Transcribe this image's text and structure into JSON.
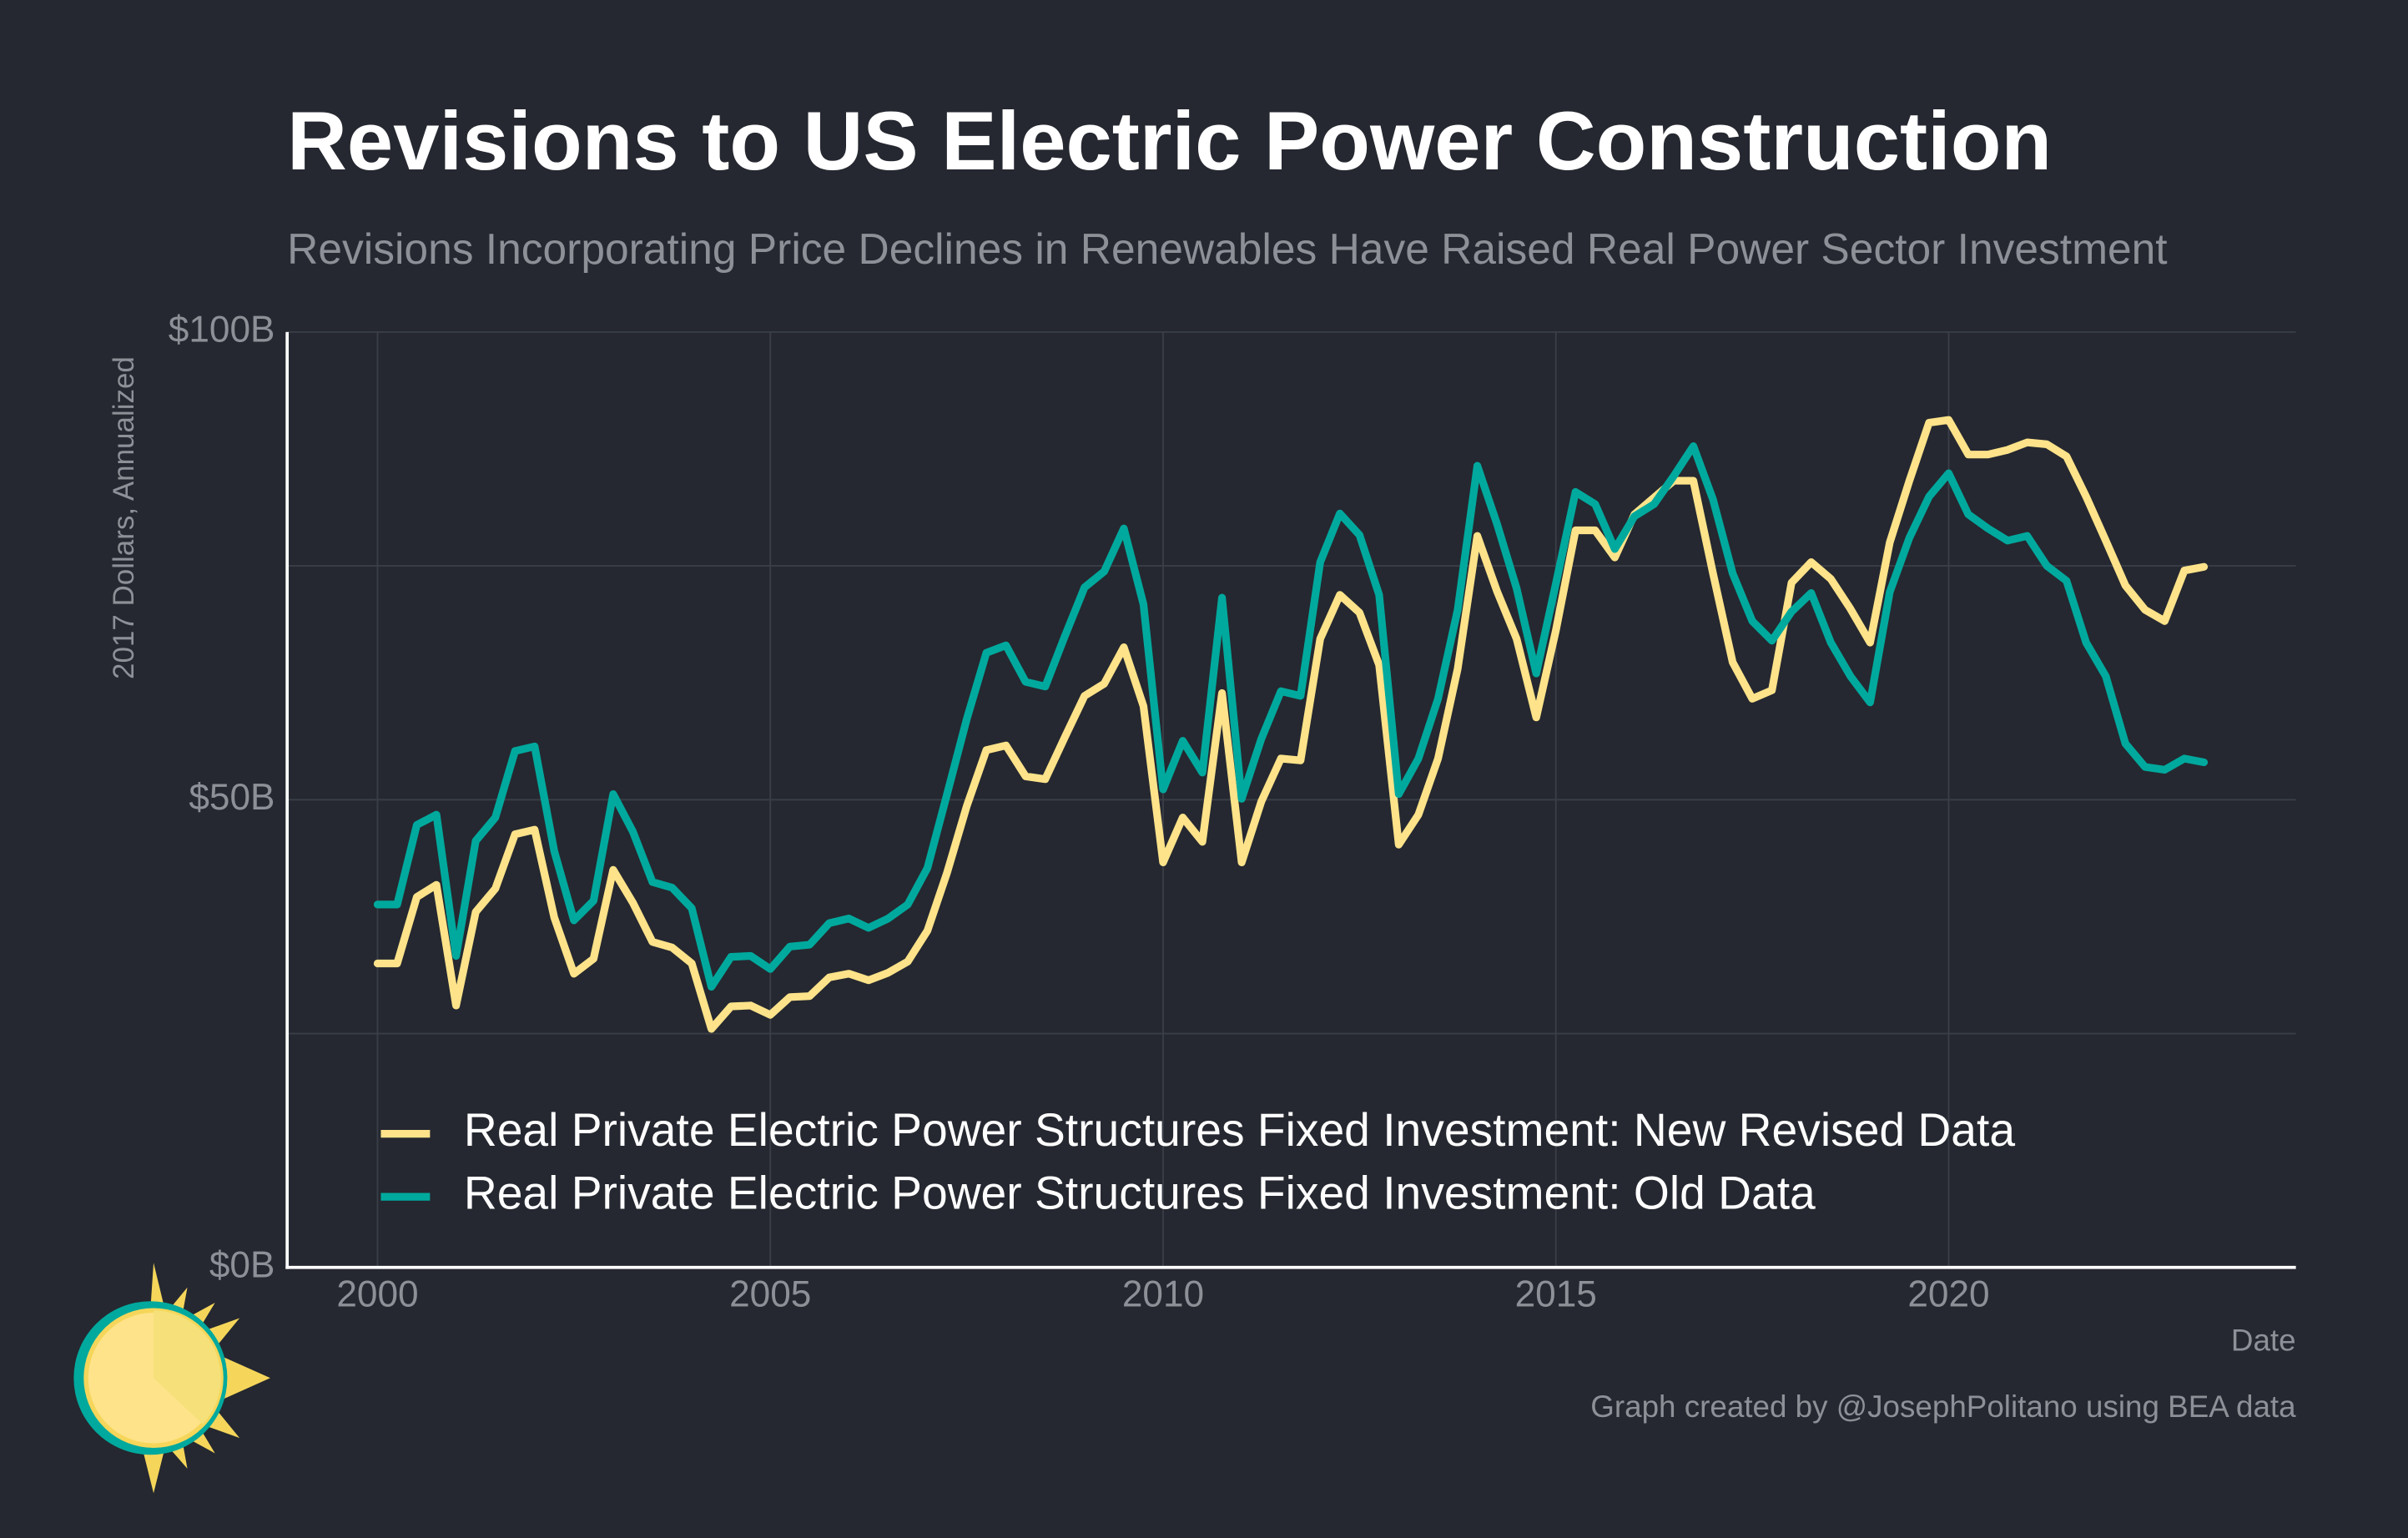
{
  "chart_data": {
    "type": "line",
    "title": "Revisions to US Electric Power Construction",
    "subtitle": "Revisions Incorporating Price Declines in Renewables Have Raised Real Power Sector Investment",
    "y_label": "2017 Dollars, Annualized",
    "x_label": "Date",
    "source": "Graph created by @JosephPolitano using BEA data",
    "x": [
      2000,
      2000.25,
      2000.5,
      2000.75,
      2001,
      2001.25,
      2001.5,
      2001.75,
      2002,
      2002.25,
      2002.5,
      2002.75,
      2003,
      2003.25,
      2003.5,
      2003.75,
      2004,
      2004.25,
      2004.5,
      2004.75,
      2005,
      2005.25,
      2005.5,
      2005.75,
      2006,
      2006.25,
      2006.5,
      2006.75,
      2007,
      2007.25,
      2007.5,
      2007.75,
      2008,
      2008.25,
      2008.5,
      2008.75,
      2009,
      2009.25,
      2009.5,
      2009.75,
      2010,
      2010.25,
      2010.5,
      2010.75,
      2011,
      2011.25,
      2011.5,
      2011.75,
      2012,
      2012.25,
      2012.5,
      2012.75,
      2013,
      2013.25,
      2013.5,
      2013.75,
      2014,
      2014.25,
      2014.5,
      2014.75,
      2015,
      2015.25,
      2015.5,
      2015.75,
      2016,
      2016.25,
      2016.5,
      2016.75,
      2017,
      2017.25,
      2017.5,
      2017.75,
      2018,
      2018.25,
      2018.5,
      2018.75,
      2019,
      2019.25,
      2019.5,
      2019.75,
      2020,
      2020.25,
      2020.5,
      2020.75,
      2021,
      2021.25,
      2021.5,
      2021.75,
      2022,
      2022.25,
      2022.5,
      2022.75,
      2023,
      2023.25
    ],
    "series": [
      {
        "name": "Real Private Electric Power Structures Fixed Investment: New Revised Data",
        "color": "#fee38a",
        "values": [
          32.5,
          32.5,
          39.6,
          40.9,
          28,
          38,
          40.5,
          46.3,
          46.8,
          37.4,
          31.4,
          33,
          42.5,
          39,
          34.8,
          34.2,
          32.5,
          25.5,
          27.9,
          28,
          27,
          28.9,
          29,
          31,
          31.4,
          30.7,
          31.5,
          32.7,
          36,
          42.2,
          49.3,
          55.3,
          55.8,
          52.5,
          52.2,
          56.7,
          61.1,
          62.4,
          66.3,
          60,
          43.3,
          48.1,
          45.5,
          61.4,
          43.3,
          49.8,
          54.4,
          54.2,
          67.2,
          71.9,
          70,
          64.4,
          45.2,
          48.4,
          54.4,
          64,
          78.2,
          72.3,
          67.2,
          58.8,
          68.1,
          78.8,
          78.8,
          75.9,
          80.5,
          82.3,
          84.1,
          84.1,
          74.2,
          64.7,
          60.8,
          61.7,
          73.2,
          75.4,
          73.6,
          70.4,
          66.8,
          77.5,
          84.1,
          90.3,
          90.6,
          86.9,
          86.9,
          87.4,
          88.2,
          88,
          86.7,
          82.4,
          77.7,
          72.9,
          70.3,
          69.1,
          74.5,
          74.9
        ]
      },
      {
        "name": "Real Private Electric Power Structures Fixed Investment: Old Data",
        "color": "#00a99d",
        "values": [
          38.8,
          38.8,
          47.3,
          48.4,
          33.3,
          45.6,
          48.1,
          55.2,
          55.7,
          44.5,
          37.1,
          39.2,
          50.6,
          46.6,
          41.2,
          40.6,
          38.4,
          30,
          33.2,
          33.3,
          31.9,
          34.3,
          34.5,
          36.8,
          37.3,
          36.3,
          37.3,
          38.8,
          42.7,
          50.6,
          58.6,
          65.7,
          66.5,
          62.6,
          62.1,
          67.5,
          72.7,
          74.4,
          79,
          70.9,
          51.1,
          56.3,
          52.9,
          71.6,
          50.1,
          56.5,
          61.6,
          61.1,
          75.4,
          80.6,
          78.3,
          71.9,
          50.6,
          54.4,
          60.8,
          70.3,
          85.7,
          79.5,
          72.6,
          63.5,
          73.1,
          82.9,
          81.6,
          76.8,
          80.3,
          81.6,
          84.6,
          87.8,
          82.1,
          74.2,
          69.1,
          67,
          70.1,
          72.1,
          66.8,
          63.2,
          60.4,
          72.2,
          78,
          82.4,
          84.9,
          80.5,
          79,
          77.7,
          78.2,
          75,
          73.4,
          66.8,
          63.2,
          56,
          53.5,
          53.2,
          54.4,
          54
        ]
      }
    ],
    "xlim": [
      1998.85,
      2024.42
    ],
    "xticks": [
      2000,
      2005,
      2010,
      2015,
      2020
    ],
    "ylim": [
      0,
      100
    ],
    "yticks": [
      {
        "value": 0,
        "label": "$0B"
      },
      {
        "value": 50,
        "label": "$50B"
      },
      {
        "value": 100,
        "label": "$100B"
      }
    ],
    "y_minor_ticks": [
      25,
      75
    ],
    "grid": true,
    "legend": "bottom-left"
  }
}
